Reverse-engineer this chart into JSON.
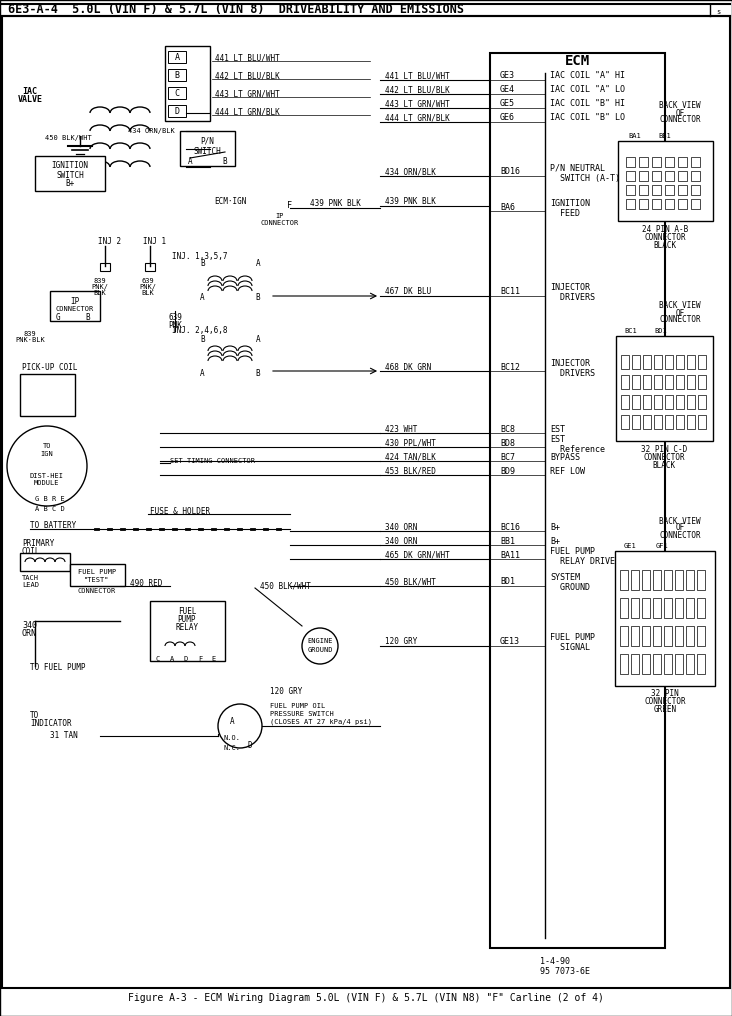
{
  "title": "6E3-A-4  5.0L (VIN F) & 5.7L (VIN 8)  DRIVEABILITY AND EMISSIONS",
  "caption": "Figure A-3 - ECM Wiring Diagram 5.0L (VIN F) & 5.7L (VIN N8) \"F\" Carline (2 of 4)",
  "bg_color": "#ffffff",
  "fg_color": "#000000",
  "date_code": "1-4-90",
  "part_num": "95 7073-6E",
  "ecm_labels": [
    {
      "code": "GE3",
      "desc": "IAC COIL \"A\" HI"
    },
    {
      "code": "GE4",
      "desc": "IAC COIL \"A\" LO"
    },
    {
      "code": "GE5",
      "desc": "IAC COIL \"B\" HI"
    },
    {
      "code": "GE6",
      "desc": "IAC COIL \"B\" LO"
    },
    {
      "code": "BD16",
      "desc": "P/N NEUTRAL\nSWITCH (A-T)"
    },
    {
      "code": "BA6",
      "desc": "IGNITION\nFEED"
    },
    {
      "code": "BC11",
      "desc": "INJECTOR\nDRIVERS"
    },
    {
      "code": "BC12",
      "desc": "INJECTOR\nDRIVERS"
    },
    {
      "code": "BC8",
      "desc": "EST"
    },
    {
      "code": "BD8",
      "desc": "EST\nReference"
    },
    {
      "code": "BC7",
      "desc": "BYPASS"
    },
    {
      "code": "BD9",
      "desc": "REF LOW"
    },
    {
      "code": "BC16",
      "desc": "B+"
    },
    {
      "code": "BB1",
      "desc": "B+"
    },
    {
      "code": "BA11",
      "desc": "FUEL PUMP\nRELAY DRIVE"
    },
    {
      "code": "BD1",
      "desc": "SYSTEM\nGROUND"
    },
    {
      "code": "GE13",
      "desc": "FUEL PUMP\nSIGNAL"
    }
  ],
  "wire_labels_left": [
    "441 LT BLU/WHT",
    "442 LT BLU/BLK",
    "443 LT GRN/WHT",
    "444 LT GRN/BLK",
    "434 ORN/BLK",
    "439 PNK BLK",
    "467 DK BLU",
    "468 DK GRN",
    "423 WHT",
    "430 PPL/WHT",
    "424 TAN/BLK",
    "453 BLK/RED",
    "340 ORN",
    "340 ORN",
    "465 DK GRN/WHT",
    "450 BLK/WHT",
    "120 GRY"
  ]
}
